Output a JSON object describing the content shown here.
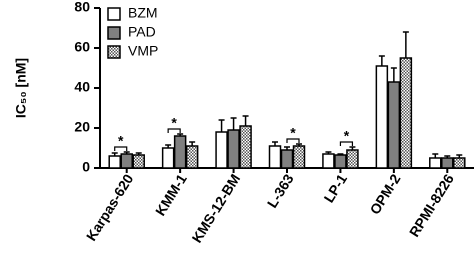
{
  "chart_data": {
    "type": "bar",
    "ylabel": "IC₅₀ [nM]",
    "categories": [
      "Karpas-620",
      "KMM-1",
      "KMS-12-BM",
      "L-363",
      "LP-1",
      "OPM-2",
      "RPMI-8226"
    ],
    "series": [
      {
        "name": "BZM",
        "color": "#ffffff",
        "values": [
          6,
          10,
          18,
          11,
          7,
          51,
          5
        ],
        "errors": [
          1.5,
          1.5,
          6,
          2,
          1,
          5,
          2
        ]
      },
      {
        "name": "PAD",
        "color": "#808080",
        "values": [
          7,
          16,
          19,
          9,
          6.5,
          43,
          5
        ],
        "errors": [
          1,
          1,
          6,
          1.5,
          0.5,
          7,
          1
        ]
      },
      {
        "name": "VMP",
        "color": "#9a9a9a",
        "pattern": "checker",
        "values": [
          6.5,
          11,
          21,
          11,
          9,
          55,
          5
        ],
        "errors": [
          1,
          2,
          5,
          1,
          1.5,
          13,
          1.5
        ]
      }
    ],
    "significance": [
      {
        "category": "Karpas-620",
        "pair": [
          "BZM",
          "PAD"
        ],
        "label": "*"
      },
      {
        "category": "KMM-1",
        "pair": [
          "BZM",
          "PAD"
        ],
        "label": "*"
      },
      {
        "category": "L-363",
        "pair": [
          "PAD",
          "VMP"
        ],
        "label": "*"
      },
      {
        "category": "LP-1",
        "pair": [
          "PAD",
          "VMP"
        ],
        "label": "*"
      }
    ],
    "ylim": [
      0,
      80
    ],
    "yticks": [
      0,
      20,
      40,
      60,
      80
    ],
    "grid": false,
    "legend": "upper left"
  }
}
